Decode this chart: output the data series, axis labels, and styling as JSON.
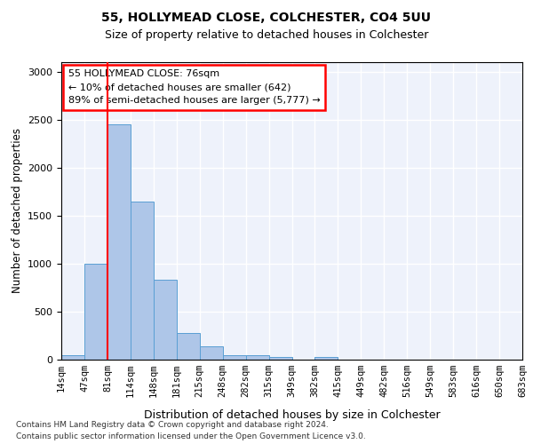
{
  "title1": "55, HOLLYMEAD CLOSE, COLCHESTER, CO4 5UU",
  "title2": "Size of property relative to detached houses in Colchester",
  "xlabel": "Distribution of detached houses by size in Colchester",
  "ylabel": "Number of detached properties",
  "bin_labels": [
    "14sqm",
    "47sqm",
    "81sqm",
    "114sqm",
    "148sqm",
    "181sqm",
    "215sqm",
    "248sqm",
    "282sqm",
    "315sqm",
    "349sqm",
    "382sqm",
    "415sqm",
    "449sqm",
    "482sqm",
    "516sqm",
    "549sqm",
    "583sqm",
    "616sqm",
    "650sqm",
    "683sqm"
  ],
  "bar_values": [
    47,
    1000,
    2450,
    1650,
    830,
    280,
    140,
    47,
    42,
    30,
    0,
    25,
    0,
    0,
    0,
    0,
    0,
    0,
    0,
    0
  ],
  "bar_color": "#aec6e8",
  "bar_edge_color": "#5a9fd4",
  "annotation_text": "55 HOLLYMEAD CLOSE: 76sqm\n← 10% of detached houses are smaller (642)\n89% of semi-detached houses are larger (5,777) →",
  "ylim": [
    0,
    3100
  ],
  "yticks": [
    0,
    500,
    1000,
    1500,
    2000,
    2500,
    3000
  ],
  "footer1": "Contains HM Land Registry data © Crown copyright and database right 2024.",
  "footer2": "Contains public sector information licensed under the Open Government Licence v3.0.",
  "background_color": "#eef2fb",
  "grid_color": "#ffffff"
}
